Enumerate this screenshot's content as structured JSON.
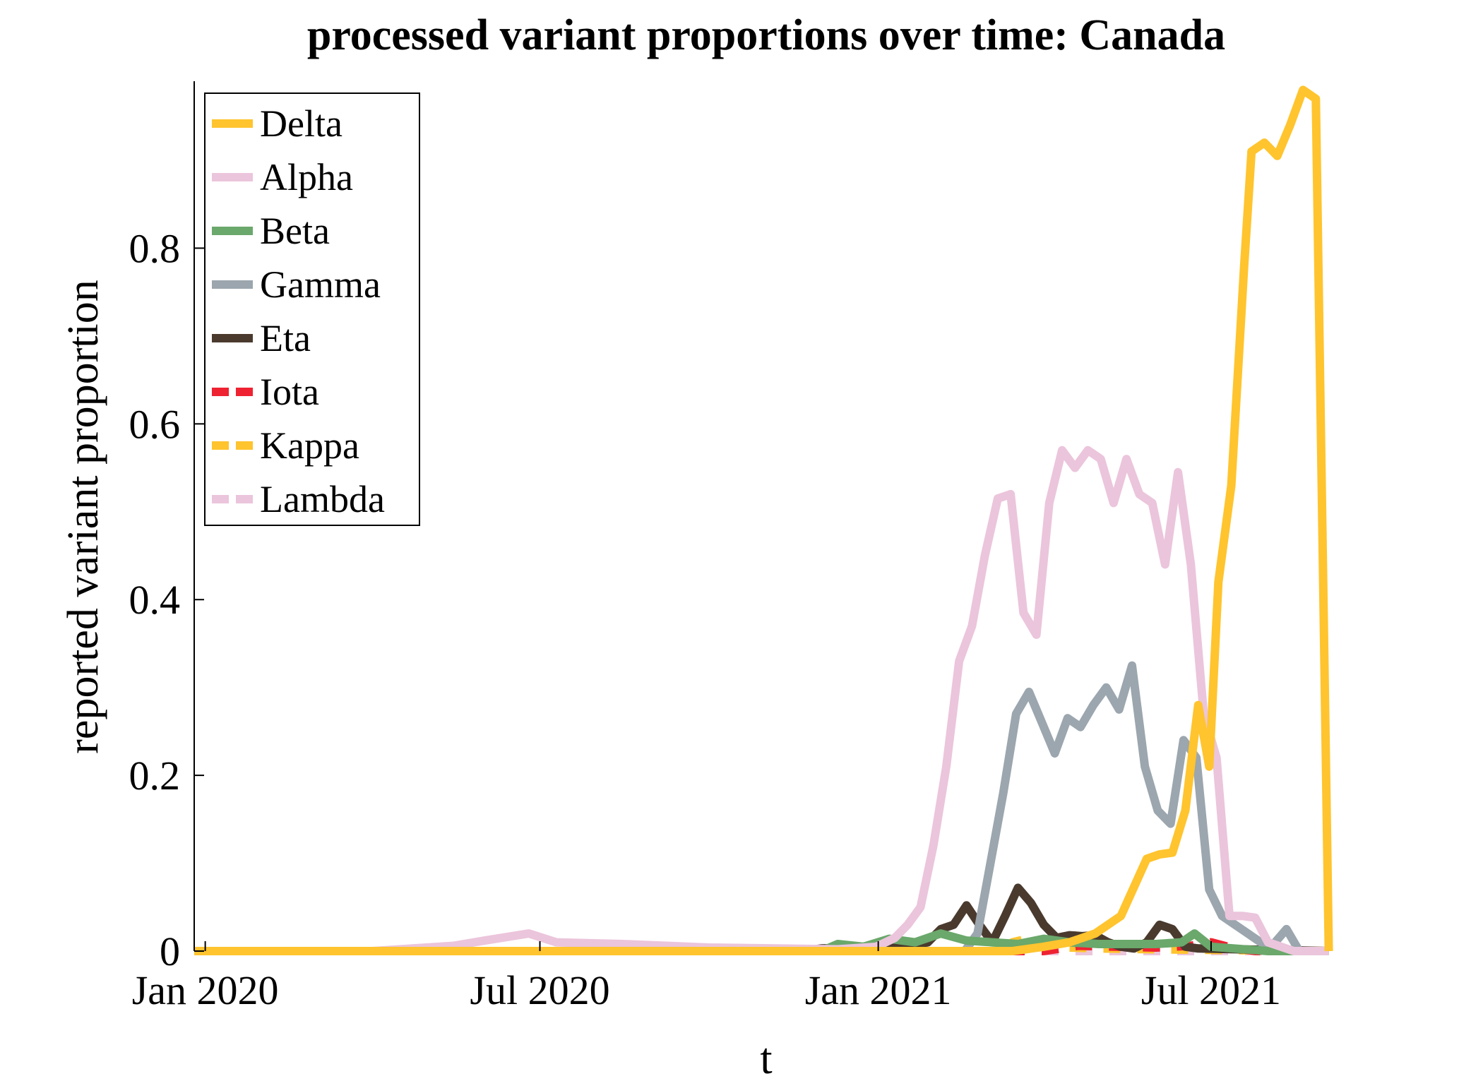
{
  "chart_data": {
    "type": "line",
    "title": "processed variant proportions over time: Canada",
    "xlabel": "t",
    "ylabel": "reported variant proportion",
    "x_ticks": [
      "Jan 2020",
      "Jul 2020",
      "Jan 2021",
      "Jul 2021"
    ],
    "x_tick_dates": [
      "2020-01-01",
      "2020-07-01",
      "2021-01-01",
      "2021-07-01"
    ],
    "xlim": [
      "2019-12-26",
      "2021-09-12"
    ],
    "y_ticks": [
      "0",
      "0.2",
      "0.4",
      "0.6",
      "0.8"
    ],
    "y_tick_values": [
      0,
      0.2,
      0.4,
      0.6,
      0.8
    ],
    "ylim": [
      0,
      0.99
    ],
    "grid": false,
    "legend_position": "top-left",
    "series": [
      {
        "name": "Delta",
        "color": "#FFC42E",
        "dash": "solid",
        "points": [
          [
            "2019-12-26",
            0
          ],
          [
            "2021-03-15",
            0
          ],
          [
            "2021-04-01",
            0.005
          ],
          [
            "2021-04-15",
            0.01
          ],
          [
            "2021-04-29",
            0.02
          ],
          [
            "2021-05-13",
            0.04
          ],
          [
            "2021-05-27",
            0.105
          ],
          [
            "2021-06-03",
            0.11
          ],
          [
            "2021-06-10",
            0.112
          ],
          [
            "2021-06-17",
            0.16
          ],
          [
            "2021-06-24",
            0.28
          ],
          [
            "2021-06-30",
            0.21
          ],
          [
            "2021-07-05",
            0.42
          ],
          [
            "2021-07-12",
            0.53
          ],
          [
            "2021-07-19",
            0.78
          ],
          [
            "2021-07-23",
            0.91
          ],
          [
            "2021-07-30",
            0.92
          ],
          [
            "2021-08-06",
            0.905
          ],
          [
            "2021-08-13",
            0.94
          ],
          [
            "2021-08-20",
            0.98
          ],
          [
            "2021-08-27",
            0.97
          ],
          [
            "2021-09-03",
            0
          ]
        ]
      },
      {
        "name": "Alpha",
        "color": "#EBC5DC",
        "dash": "solid",
        "points": [
          [
            "2019-12-26",
            0
          ],
          [
            "2020-04-01",
            0
          ],
          [
            "2020-05-15",
            0.006
          ],
          [
            "2020-06-01",
            0.012
          ],
          [
            "2020-06-25",
            0.02
          ],
          [
            "2020-07-10",
            0.01
          ],
          [
            "2020-08-15",
            0.008
          ],
          [
            "2020-10-01",
            0.004
          ],
          [
            "2020-12-10",
            0.002
          ],
          [
            "2020-12-31",
            0.005
          ],
          [
            "2021-01-10",
            0.015
          ],
          [
            "2021-01-17",
            0.03
          ],
          [
            "2021-01-24",
            0.05
          ],
          [
            "2021-01-31",
            0.12
          ],
          [
            "2021-02-07",
            0.21
          ],
          [
            "2021-02-14",
            0.33
          ],
          [
            "2021-02-21",
            0.37
          ],
          [
            "2021-02-28",
            0.45
          ],
          [
            "2021-03-07",
            0.515
          ],
          [
            "2021-03-14",
            0.52
          ],
          [
            "2021-03-21",
            0.385
          ],
          [
            "2021-03-28",
            0.36
          ],
          [
            "2021-04-04",
            0.51
          ],
          [
            "2021-04-11",
            0.57
          ],
          [
            "2021-04-18",
            0.55
          ],
          [
            "2021-04-25",
            0.57
          ],
          [
            "2021-05-02",
            0.56
          ],
          [
            "2021-05-09",
            0.51
          ],
          [
            "2021-05-16",
            0.56
          ],
          [
            "2021-05-23",
            0.52
          ],
          [
            "2021-05-30",
            0.51
          ],
          [
            "2021-06-06",
            0.44
          ],
          [
            "2021-06-13",
            0.545
          ],
          [
            "2021-06-20",
            0.44
          ],
          [
            "2021-06-27",
            0.27
          ],
          [
            "2021-07-04",
            0.22
          ],
          [
            "2021-07-11",
            0.04
          ],
          [
            "2021-07-18",
            0.04
          ],
          [
            "2021-07-25",
            0.038
          ],
          [
            "2021-08-01",
            0.01
          ],
          [
            "2021-08-15",
            0
          ],
          [
            "2021-09-03",
            0
          ]
        ]
      },
      {
        "name": "Beta",
        "color": "#6AA86B",
        "dash": "solid",
        "points": [
          [
            "2019-12-26",
            0
          ],
          [
            "2020-12-01",
            0
          ],
          [
            "2020-12-10",
            0.008
          ],
          [
            "2020-12-24",
            0.005
          ],
          [
            "2021-01-07",
            0.014
          ],
          [
            "2021-01-21",
            0.01
          ],
          [
            "2021-02-04",
            0.02
          ],
          [
            "2021-02-18",
            0.012
          ],
          [
            "2021-03-04",
            0.01
          ],
          [
            "2021-03-18",
            0.008
          ],
          [
            "2021-04-01",
            0.014
          ],
          [
            "2021-04-15",
            0.01
          ],
          [
            "2021-05-01",
            0.008
          ],
          [
            "2021-06-01",
            0.008
          ],
          [
            "2021-06-15",
            0.01
          ],
          [
            "2021-06-22",
            0.02
          ],
          [
            "2021-07-01",
            0.005
          ],
          [
            "2021-08-01",
            0
          ],
          [
            "2021-09-03",
            0
          ]
        ]
      },
      {
        "name": "Gamma",
        "color": "#9BA6AE",
        "dash": "solid",
        "points": [
          [
            "2019-12-26",
            0
          ],
          [
            "2021-02-17",
            0
          ],
          [
            "2021-02-24",
            0.02
          ],
          [
            "2021-03-03",
            0.1
          ],
          [
            "2021-03-10",
            0.18
          ],
          [
            "2021-03-17",
            0.27
          ],
          [
            "2021-03-24",
            0.295
          ],
          [
            "2021-03-31",
            0.26
          ],
          [
            "2021-04-07",
            0.225
          ],
          [
            "2021-04-14",
            0.265
          ],
          [
            "2021-04-21",
            0.255
          ],
          [
            "2021-04-28",
            0.28
          ],
          [
            "2021-05-05",
            0.3
          ],
          [
            "2021-05-12",
            0.275
          ],
          [
            "2021-05-19",
            0.325
          ],
          [
            "2021-05-26",
            0.21
          ],
          [
            "2021-06-02",
            0.16
          ],
          [
            "2021-06-09",
            0.145
          ],
          [
            "2021-06-16",
            0.24
          ],
          [
            "2021-06-23",
            0.22
          ],
          [
            "2021-06-30",
            0.07
          ],
          [
            "2021-07-07",
            0.04
          ],
          [
            "2021-07-14",
            0.03
          ],
          [
            "2021-07-21",
            0.02
          ],
          [
            "2021-07-28",
            0.01
          ],
          [
            "2021-08-04",
            0.008
          ],
          [
            "2021-08-11",
            0.025
          ],
          [
            "2021-08-18",
            0
          ],
          [
            "2021-09-03",
            0
          ]
        ]
      },
      {
        "name": "Eta",
        "color": "#4A3A2E",
        "dash": "solid",
        "points": [
          [
            "2019-12-26",
            0
          ],
          [
            "2020-11-20",
            0
          ],
          [
            "2020-12-01",
            0.003
          ],
          [
            "2021-01-15",
            0.005
          ],
          [
            "2021-01-28",
            0.01
          ],
          [
            "2021-02-04",
            0.025
          ],
          [
            "2021-02-11",
            0.03
          ],
          [
            "2021-02-18",
            0.052
          ],
          [
            "2021-02-25",
            0.03
          ],
          [
            "2021-03-04",
            0.01
          ],
          [
            "2021-03-11",
            0.04
          ],
          [
            "2021-03-18",
            0.072
          ],
          [
            "2021-03-25",
            0.055
          ],
          [
            "2021-04-01",
            0.03
          ],
          [
            "2021-04-08",
            0.015
          ],
          [
            "2021-04-15",
            0.018
          ],
          [
            "2021-04-22",
            0.017
          ],
          [
            "2021-04-29",
            0.018
          ],
          [
            "2021-05-06",
            0.01
          ],
          [
            "2021-05-13",
            0.005
          ],
          [
            "2021-05-20",
            0.003
          ],
          [
            "2021-05-27",
            0.01
          ],
          [
            "2021-06-03",
            0.03
          ],
          [
            "2021-06-10",
            0.025
          ],
          [
            "2021-06-17",
            0.005
          ],
          [
            "2021-06-24",
            0.003
          ],
          [
            "2021-09-03",
            0
          ]
        ]
      },
      {
        "name": "Iota",
        "color": "#EE2231",
        "dash": "dashed",
        "points": [
          [
            "2019-12-26",
            0
          ],
          [
            "2021-04-01",
            0
          ],
          [
            "2021-04-20",
            0.006
          ],
          [
            "2021-05-10",
            0.005
          ],
          [
            "2021-06-01",
            0.004
          ],
          [
            "2021-06-20",
            0.006
          ],
          [
            "2021-07-01",
            0.01
          ],
          [
            "2021-07-10",
            0.005
          ],
          [
            "2021-07-25",
            0
          ],
          [
            "2021-09-03",
            0
          ]
        ]
      },
      {
        "name": "Kappa",
        "color": "#FFC42E",
        "dash": "dashed",
        "points": [
          [
            "2019-12-26",
            0
          ],
          [
            "2021-03-08",
            0
          ],
          [
            "2021-03-15",
            0.01
          ],
          [
            "2021-03-25",
            0.015
          ],
          [
            "2021-04-01",
            0.005
          ],
          [
            "2021-05-01",
            0.003
          ],
          [
            "2021-06-01",
            0.002
          ],
          [
            "2021-09-03",
            0
          ]
        ]
      },
      {
        "name": "Lambda",
        "color": "#EBC5DC",
        "dash": "dashed",
        "points": [
          [
            "2019-12-26",
            0
          ],
          [
            "2021-09-03",
            0
          ]
        ]
      }
    ]
  }
}
